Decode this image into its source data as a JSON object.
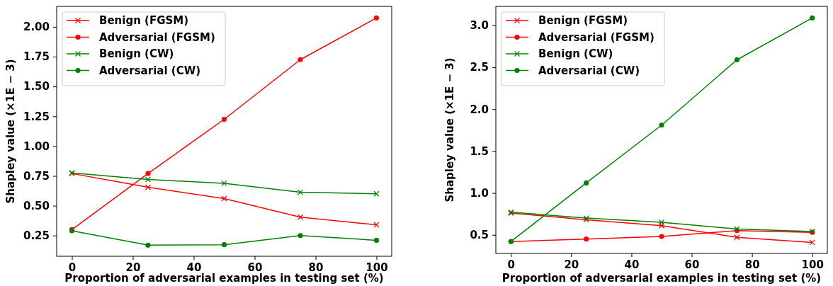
{
  "chart_data": [
    {
      "type": "line",
      "xlabel": "Proportion of adversarial examples in testing set (%)",
      "ylabel": "Shapley value (×1E − 3)",
      "x": [
        0,
        25,
        50,
        75,
        100
      ],
      "xlim": [
        -5,
        105
      ],
      "xticks": [
        0,
        20,
        40,
        60,
        80,
        100
      ],
      "ylim": [
        0.076,
        2.172
      ],
      "yticks": [
        0.25,
        {
          "value": 0.5,
          "label": "0.50"
        },
        0.75,
        {
          "value": 1,
          "label": "1.00"
        },
        1.25,
        {
          "value": 1.5,
          "label": "1.50"
        },
        1.75,
        {
          "value": 2,
          "label": "2.00"
        }
      ],
      "legend": "top left",
      "line_style": "solid",
      "series": [
        {
          "name": "Benign (FGSM)",
          "color": "#ff0000",
          "marker": "cross",
          "values": [
            0.77,
            0.655,
            0.56,
            0.404,
            0.34
          ]
        },
        {
          "name": "Adversarial (FGSM)",
          "color": "#ff0000",
          "marker": "circle",
          "values": [
            0.3,
            0.77,
            1.225,
            1.725,
            2.075
          ]
        },
        {
          "name": "Benign (CW)",
          "color": "#008000",
          "marker": "cross",
          "values": [
            0.775,
            0.72,
            0.688,
            0.613,
            0.6
          ]
        },
        {
          "name": "Adversarial (CW)",
          "color": "#008000",
          "marker": "circle",
          "values": [
            0.29,
            0.169,
            0.173,
            0.25,
            0.21
          ]
        }
      ]
    },
    {
      "type": "line",
      "xlabel": "Proportion of adversarial examples in testing set (%)",
      "ylabel": "Shapley value (×1E − 3)",
      "x": [
        0,
        25,
        50,
        75,
        100
      ],
      "xlim": [
        -5,
        105
      ],
      "xticks": [
        0,
        20,
        40,
        60,
        80,
        100
      ],
      "ylim": [
        0.278,
        3.228
      ],
      "yticks": [
        0.5,
        {
          "value": 1,
          "label": "1.0"
        },
        1.5,
        {
          "value": 2,
          "label": "2.0"
        },
        2.5,
        {
          "value": 3,
          "label": "3.0"
        }
      ],
      "legend": "top left",
      "line_style": "solid",
      "series": [
        {
          "name": "Benign (FGSM)",
          "color": "#ff0000",
          "marker": "cross",
          "values": [
            0.76,
            0.68,
            0.61,
            0.47,
            0.41
          ]
        },
        {
          "name": "Adversarial (FGSM)",
          "color": "#ff0000",
          "marker": "circle",
          "values": [
            0.42,
            0.45,
            0.48,
            0.55,
            0.53
          ]
        },
        {
          "name": "Benign (CW)",
          "color": "#008000",
          "marker": "cross",
          "values": [
            0.77,
            0.7,
            0.65,
            0.57,
            0.54
          ]
        },
        {
          "name": "Adversarial (CW)",
          "color": "#008000",
          "marker": "circle",
          "values": [
            0.42,
            1.12,
            1.81,
            2.59,
            3.09
          ]
        }
      ]
    }
  ]
}
